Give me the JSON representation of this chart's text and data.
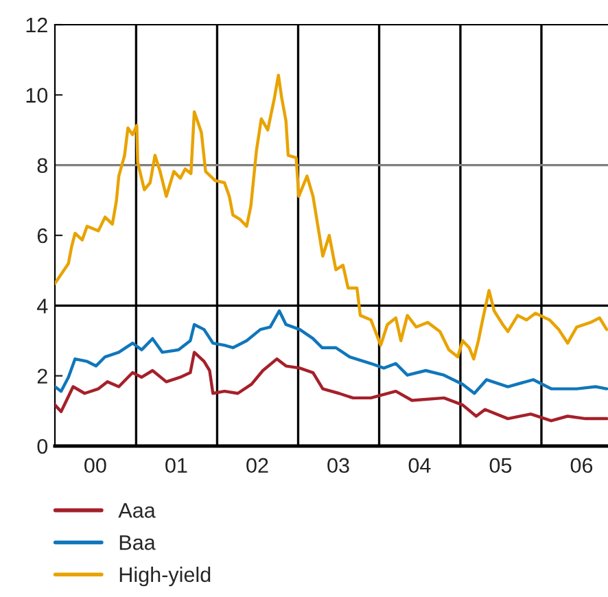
{
  "chart_data": {
    "type": "line",
    "xlim": [
      "2000-01-01",
      "2006-10-28"
    ],
    "ylim": [
      0,
      12
    ],
    "xticks": [
      {
        "value": "2000-07-01",
        "label": "00"
      },
      {
        "value": "2001-07-01",
        "label": "01"
      },
      {
        "value": "2002-07-01",
        "label": "02"
      },
      {
        "value": "2003-07-01",
        "label": "03"
      },
      {
        "value": "2004-07-01",
        "label": "04"
      },
      {
        "value": "2005-07-01",
        "label": "05"
      },
      {
        "value": "2006-07-01",
        "label": "06"
      }
    ],
    "yticks": [
      0,
      2,
      4,
      6,
      8,
      10,
      12
    ],
    "grid": false,
    "legend": "bottom left",
    "line_style": "solid",
    "ref_lines": [
      {
        "axis": "x",
        "value": "2001-01-01",
        "color": "#000000"
      },
      {
        "axis": "x",
        "value": "2002-01-01",
        "color": "#000000"
      },
      {
        "axis": "x",
        "value": "2003-01-01",
        "color": "#000000"
      },
      {
        "axis": "x",
        "value": "2004-01-01",
        "color": "#000000"
      },
      {
        "axis": "x",
        "value": "2005-01-01",
        "color": "#000000"
      },
      {
        "axis": "x",
        "value": "2006-01-01",
        "color": "#000000"
      },
      {
        "axis": "y",
        "value": 4,
        "color": "#000000"
      },
      {
        "axis": "y",
        "value": 8,
        "color": "#7f7f7f"
      }
    ],
    "series": [
      {
        "name": "Aaa",
        "color": "#a5202a",
        "x": [
          "2000-01-01",
          "2000-01-29",
          "2000-03-23",
          "2000-05-14",
          "2000-07-15",
          "2000-08-25",
          "2000-10-15",
          "2000-12-16",
          "2001-01-26",
          "2001-03-16",
          "2001-05-17",
          "2001-07-19",
          "2001-09-02",
          "2001-09-20",
          "2001-11-03",
          "2001-11-28",
          "2001-12-13",
          "2002-02-03",
          "2002-04-04",
          "2002-06-05",
          "2002-07-26",
          "2002-09-27",
          "2002-11-07",
          "2003-01-08",
          "2003-03-09",
          "2003-04-22",
          "2003-07-04",
          "2003-09-05",
          "2003-11-25",
          "2004-03-16",
          "2004-05-28",
          "2004-10-19",
          "2005-01-11",
          "2005-03-13",
          "2005-04-22",
          "2005-08-03",
          "2005-11-14",
          "2006-02-14",
          "2006-04-29",
          "2006-07-19",
          "2006-10-22"
        ],
        "values": [
          1.17,
          0.98,
          1.69,
          1.5,
          1.63,
          1.83,
          1.69,
          2.09,
          1.96,
          2.15,
          1.83,
          1.96,
          2.09,
          2.67,
          2.41,
          2.15,
          1.5,
          1.56,
          1.5,
          1.76,
          2.15,
          2.48,
          2.28,
          2.22,
          2.09,
          1.63,
          1.5,
          1.37,
          1.37,
          1.56,
          1.3,
          1.37,
          1.17,
          0.85,
          1.04,
          0.78,
          0.91,
          0.72,
          0.85,
          0.78,
          0.78
        ]
      },
      {
        "name": "Baa",
        "color": "#1076bb",
        "x": [
          "2000-01-01",
          "2000-01-29",
          "2000-03-02",
          "2000-04-01",
          "2000-05-25",
          "2000-07-04",
          "2000-08-14",
          "2000-10-15",
          "2000-12-16",
          "2001-01-26",
          "2001-03-16",
          "2001-04-29",
          "2001-07-11",
          "2001-09-02",
          "2001-09-20",
          "2001-11-03",
          "2001-12-13",
          "2002-02-03",
          "2002-03-13",
          "2002-05-14",
          "2002-07-15",
          "2002-08-28",
          "2002-10-08",
          "2002-11-07",
          "2003-01-08",
          "2003-03-09",
          "2003-04-19",
          "2003-06-20",
          "2003-08-21",
          "2003-11-25",
          "2004-01-22",
          "2004-03-16",
          "2004-05-07",
          "2004-07-29",
          "2004-10-19",
          "2005-01-11",
          "2005-03-05",
          "2005-04-29",
          "2005-08-03",
          "2005-11-25",
          "2006-02-14",
          "2006-06-09",
          "2006-09-02",
          "2006-10-22"
        ],
        "values": [
          1.69,
          1.56,
          1.96,
          2.48,
          2.41,
          2.28,
          2.54,
          2.67,
          2.93,
          2.74,
          3.06,
          2.67,
          2.74,
          3.0,
          3.46,
          3.32,
          2.93,
          2.87,
          2.8,
          3.0,
          3.32,
          3.39,
          3.85,
          3.46,
          3.32,
          3.06,
          2.8,
          2.8,
          2.54,
          2.35,
          2.22,
          2.35,
          2.02,
          2.15,
          2.02,
          1.76,
          1.5,
          1.89,
          1.69,
          1.89,
          1.63,
          1.63,
          1.69,
          1.63
        ]
      },
      {
        "name": "High-yield",
        "color": "#e8a300",
        "x": [
          "2000-01-01",
          "2000-01-29",
          "2000-03-02",
          "2000-03-16",
          "2000-04-01",
          "2000-05-03",
          "2000-05-25",
          "2000-07-15",
          "2000-08-14",
          "2000-09-16",
          "2000-10-04",
          "2000-10-15",
          "2000-11-10",
          "2000-11-25",
          "2000-12-16",
          "2001-01-04",
          "2001-01-08",
          "2001-02-07",
          "2001-03-05",
          "2001-03-27",
          "2001-04-19",
          "2001-05-17",
          "2001-06-20",
          "2001-07-19",
          "2001-08-10",
          "2001-09-05",
          "2001-09-20",
          "2001-10-22",
          "2001-11-10",
          "2001-12-23",
          "2002-02-03",
          "2002-02-25",
          "2002-03-13",
          "2002-04-15",
          "2002-05-14",
          "2002-06-02",
          "2002-06-27",
          "2002-07-19",
          "2002-08-17",
          "2002-09-16",
          "2002-10-04",
          "2002-10-19",
          "2002-11-07",
          "2002-11-17",
          "2002-12-23",
          "2003-01-04",
          "2003-02-10",
          "2003-03-09",
          "2003-04-22",
          "2003-05-21",
          "2003-06-20",
          "2003-07-22",
          "2003-08-14",
          "2003-09-23",
          "2003-10-08",
          "2003-11-25",
          "2004-01-08",
          "2004-02-07",
          "2004-03-16",
          "2004-04-08",
          "2004-05-07",
          "2004-06-16",
          "2004-08-07",
          "2004-10-01",
          "2004-11-10",
          "2004-12-20",
          "2005-01-11",
          "2005-02-10",
          "2005-03-02",
          "2005-03-23",
          "2005-04-11",
          "2005-05-10",
          "2005-06-02",
          "2005-07-11",
          "2005-08-03",
          "2005-09-16",
          "2005-10-26",
          "2005-12-05",
          "2006-02-07",
          "2006-03-20",
          "2006-04-29",
          "2006-06-09",
          "2006-08-10",
          "2006-09-20",
          "2006-10-22"
        ],
        "values": [
          4.63,
          4.89,
          5.2,
          5.67,
          6.06,
          5.87,
          6.26,
          6.13,
          6.52,
          6.32,
          6.98,
          7.69,
          8.28,
          9.06,
          8.87,
          9.13,
          8.08,
          7.3,
          7.5,
          8.28,
          7.82,
          7.11,
          7.82,
          7.63,
          7.89,
          7.76,
          9.52,
          8.93,
          7.82,
          7.56,
          7.5,
          7.11,
          6.58,
          6.45,
          6.26,
          6.84,
          8.41,
          9.32,
          9.0,
          9.91,
          10.56,
          9.91,
          9.26,
          8.28,
          8.21,
          7.11,
          7.69,
          7.11,
          5.41,
          6.0,
          5.02,
          5.15,
          4.5,
          4.5,
          3.72,
          3.59,
          2.87,
          3.46,
          3.65,
          3.0,
          3.72,
          3.39,
          3.52,
          3.26,
          2.74,
          2.54,
          3.0,
          2.8,
          2.48,
          3.0,
          3.59,
          4.43,
          3.85,
          3.46,
          3.26,
          3.72,
          3.59,
          3.78,
          3.59,
          3.32,
          2.93,
          3.39,
          3.52,
          3.65,
          3.32
        ]
      }
    ]
  }
}
